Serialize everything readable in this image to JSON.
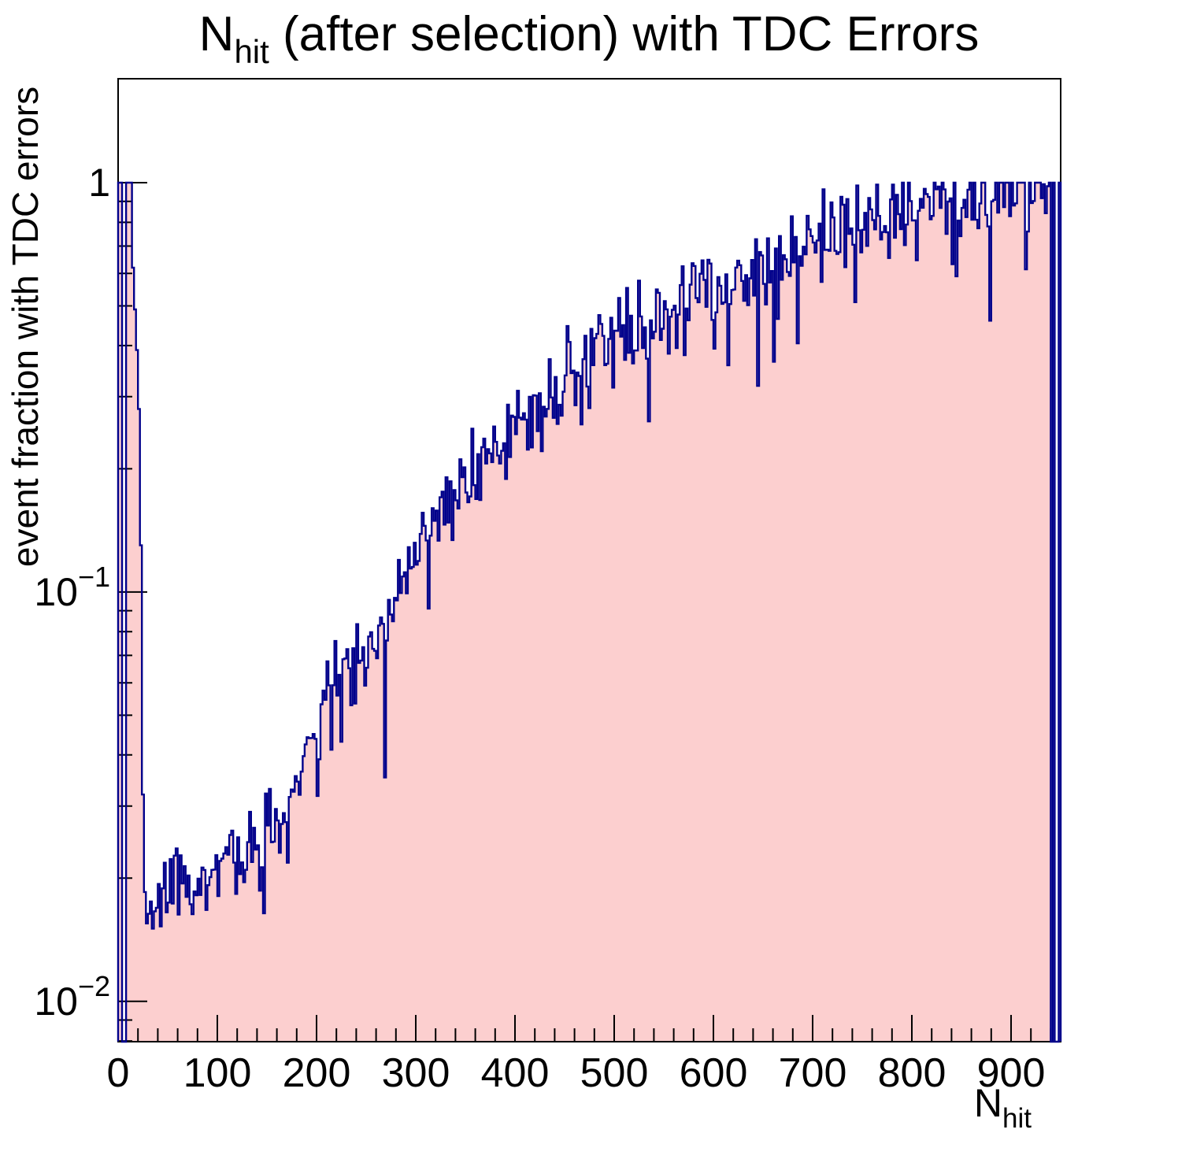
{
  "page": {
    "background": "#ffffff"
  },
  "chart_data": {
    "type": "histogram",
    "title": "N_hit (after selection) with TDC Errors",
    "title_parts": {
      "base": "N",
      "sub": "hit",
      "rest": " (after selection) with TDC Errors"
    },
    "xlabel": "N_hit",
    "xlabel_parts": {
      "base": "N",
      "sub": "hit"
    },
    "ylabel": "event fraction with TDC errors",
    "x_range": [
      0,
      950
    ],
    "bin_width": 2,
    "y_scale": "log",
    "y_range": [
      0.00797,
      1.794
    ],
    "grid": false,
    "legend": "none",
    "x_major_ticks": [
      {
        "v": 0,
        "label": "0"
      },
      {
        "v": 100,
        "label": "100"
      },
      {
        "v": 200,
        "label": "200"
      },
      {
        "v": 300,
        "label": "300"
      },
      {
        "v": 400,
        "label": "400"
      },
      {
        "v": 500,
        "label": "500"
      },
      {
        "v": 600,
        "label": "600"
      },
      {
        "v": 700,
        "label": "700"
      },
      {
        "v": 800,
        "label": "800"
      },
      {
        "v": 900,
        "label": "900"
      }
    ],
    "x_minor_step": 20,
    "y_major_ticks": [
      {
        "v": 1,
        "base": "1",
        "exp": ""
      },
      {
        "v": 0.1,
        "base": "10",
        "exp": "−1"
      },
      {
        "v": 0.01,
        "base": "10",
        "exp": "−2"
      }
    ],
    "y_minor_multiples": [
      2,
      3,
      4,
      5,
      6,
      7,
      8,
      9
    ],
    "colors": {
      "fill": "#fccfcf",
      "line": "#00008b",
      "axis": "#000000",
      "text": "#000000"
    },
    "spike_bins": [
      [
        0,
        1
      ],
      [
        2,
        1
      ],
      [
        4,
        0
      ],
      [
        6,
        0
      ],
      [
        8,
        1
      ],
      [
        10,
        1
      ],
      [
        12,
        1
      ],
      [
        14,
        0.62
      ],
      [
        16,
        0.49
      ],
      [
        18,
        0.39
      ],
      [
        20,
        0.28
      ],
      [
        22,
        0.13
      ],
      [
        24,
        0.032
      ],
      [
        26,
        0.0185
      ],
      [
        28,
        0.0155
      ]
    ],
    "backbone": [
      [
        30,
        0.016
      ],
      [
        36,
        0.0178
      ],
      [
        44,
        0.0182
      ],
      [
        56,
        0.019
      ],
      [
        70,
        0.019
      ],
      [
        80,
        0.0205
      ],
      [
        95,
        0.0195
      ],
      [
        110,
        0.0215
      ],
      [
        125,
        0.023
      ],
      [
        140,
        0.0245
      ],
      [
        155,
        0.0265
      ],
      [
        170,
        0.03
      ],
      [
        185,
        0.037
      ],
      [
        200,
        0.047
      ],
      [
        215,
        0.057
      ],
      [
        230,
        0.065
      ],
      [
        245,
        0.072
      ],
      [
        260,
        0.078
      ],
      [
        275,
        0.086
      ],
      [
        290,
        0.11
      ],
      [
        305,
        0.135
      ],
      [
        320,
        0.16
      ],
      [
        340,
        0.185
      ],
      [
        360,
        0.205
      ],
      [
        375,
        0.215
      ],
      [
        395,
        0.245
      ],
      [
        410,
        0.265
      ],
      [
        425,
        0.295
      ],
      [
        440,
        0.325
      ],
      [
        460,
        0.355
      ],
      [
        480,
        0.385
      ],
      [
        500,
        0.42
      ],
      [
        520,
        0.445
      ],
      [
        540,
        0.47
      ],
      [
        560,
        0.49
      ],
      [
        580,
        0.515
      ],
      [
        600,
        0.535
      ],
      [
        620,
        0.565
      ],
      [
        640,
        0.6
      ],
      [
        660,
        0.63
      ],
      [
        680,
        0.67
      ],
      [
        700,
        0.72
      ],
      [
        720,
        0.76
      ],
      [
        740,
        0.79
      ],
      [
        760,
        0.815
      ],
      [
        780,
        0.845
      ],
      [
        800,
        0.875
      ],
      [
        820,
        0.9
      ],
      [
        840,
        0.92
      ],
      [
        860,
        0.93
      ],
      [
        880,
        0.945
      ],
      [
        900,
        0.955
      ],
      [
        920,
        0.96
      ],
      [
        934,
        0.97
      ]
    ],
    "tail_bins": [
      [
        936,
        0.98
      ],
      [
        938,
        1
      ],
      [
        940,
        0
      ],
      [
        942,
        1
      ],
      [
        944,
        0
      ],
      [
        946,
        0
      ],
      [
        948,
        1
      ]
    ],
    "noise": {
      "sigma_log10": 0.05,
      "dip_prob": 0.06,
      "dip_factor": 0.72,
      "deep_dip_prob": 0.015,
      "deep_dip_factor": 0.58,
      "cap_start": 818,
      "seed": 20
    }
  }
}
